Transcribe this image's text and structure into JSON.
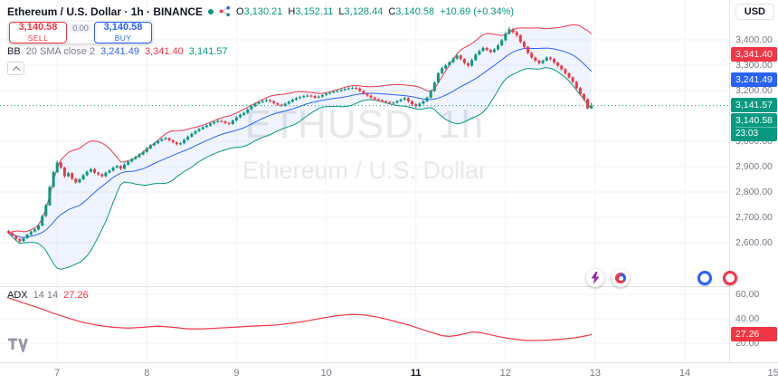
{
  "header": {
    "title": "Ethereum / U.S. Dollar · 1h · BINANCE",
    "ohlc": {
      "o_label": "O",
      "o": "3,130.21",
      "h_label": "H",
      "h": "3,152.11",
      "l_label": "L",
      "l": "3,128.44",
      "c_label": "C",
      "c": "3,140.58",
      "change": "+10.69 (+0.34%)"
    }
  },
  "trade_panel": {
    "sell_price": "3,140.58",
    "sell_label": "SELL",
    "spread": "0.00",
    "buy_price": "3,140.58",
    "buy_label": "BUY"
  },
  "indicators_row": {
    "bb": {
      "name": "BB",
      "params": "20 SMA close 2",
      "values": [
        {
          "text": "3,241.49",
          "color": "#2962ff"
        },
        {
          "text": "3,341.40",
          "color": "#f23645"
        },
        {
          "text": "3,141.57",
          "color": "#089981"
        }
      ]
    },
    "adx": {
      "name": "ADX",
      "params": "14 14",
      "value": "27.26"
    }
  },
  "watermark": {
    "line1": "ETHUSD, 1h",
    "line2": "Ethereum / U.S. Dollar"
  },
  "toolbar": {
    "currency_label": "USD"
  },
  "price_scale": {
    "labels": [
      {
        "text": "3,400.00",
        "price": 3400
      },
      {
        "text": "3,300.00",
        "price": 3300
      },
      {
        "text": "3,200.00",
        "price": 3200
      },
      {
        "text": "3,000.00",
        "price": 3000
      },
      {
        "text": "2,900.00",
        "price": 2900
      },
      {
        "text": "2,800.00",
        "price": 2800
      },
      {
        "text": "2,700.00",
        "price": 2700
      },
      {
        "text": "2,600.00",
        "price": 2600
      }
    ],
    "badges": [
      {
        "text": "3,341.40",
        "price": 3341.4,
        "color": "#f23645",
        "name": "bb-upper-badge"
      },
      {
        "text": "3,241.49",
        "price": 3241.49,
        "color": "#2962ff",
        "name": "bb-basis-badge"
      },
      {
        "text": "3,141.57",
        "price": 3141.57,
        "color": "#089981",
        "name": "bb-lower-badge"
      }
    ],
    "current_badge": {
      "text": "3,140.58",
      "countdown": "23:03",
      "price": 3140.58,
      "color": "#089981"
    }
  },
  "adx_scale": {
    "labels": [
      {
        "text": "60.00",
        "value": 60
      },
      {
        "text": "40.00",
        "value": 40
      },
      {
        "text": "20.00",
        "value": 20
      }
    ],
    "badge": {
      "text": "27.26",
      "value": 27.26,
      "color": "#f23645"
    }
  },
  "time_axis": [
    {
      "label": "7",
      "i": 13
    },
    {
      "label": "8",
      "i": 37
    },
    {
      "label": "9",
      "i": 61
    },
    {
      "label": "10",
      "i": 85
    },
    {
      "label": "11",
      "i": 109,
      "bold": true
    },
    {
      "label": "12",
      "i": 133
    },
    {
      "label": "13",
      "i": 157
    },
    {
      "label": "14",
      "i": 181
    },
    {
      "label": "15:",
      "i": 205
    }
  ],
  "colors": {
    "up": "#089981",
    "down": "#f23645",
    "bb_basis": "#2962ff",
    "bb_upper": "#f23645",
    "bb_lower": "#089981",
    "bb_fill": "rgba(41,98,255,0.07)",
    "adx_line": "#f23645",
    "grid": "#f0f3fa",
    "axis_text": "#787b86",
    "text": "#131722"
  },
  "chart_data": {
    "type": "candlestick",
    "symbol": "ETHUSD",
    "exchange": "BINANCE",
    "interval": "1h",
    "title": "Ethereum / U.S. Dollar",
    "current_price": 3140.58,
    "price_axis": {
      "tick_step": 100,
      "visible_ticks": [
        2600,
        2700,
        2800,
        2900,
        3000,
        3200,
        3300,
        3400
      ],
      "y_range_approx": [
        2430,
        3557
      ]
    },
    "indicators": {
      "bollinger": {
        "period": 20,
        "source": "SMA close",
        "stdev": 2,
        "basis": 3241.49,
        "upper": 3341.4,
        "lower": 3141.57
      },
      "adx": {
        "smoothing": 14,
        "di_length": 14,
        "value": 27.26,
        "scale_ticks": [
          20,
          40,
          60
        ],
        "points": [
          [
            0,
            57
          ],
          [
            4,
            53
          ],
          [
            8,
            49
          ],
          [
            12,
            44.5
          ],
          [
            16,
            40.5
          ],
          [
            20,
            37
          ],
          [
            24,
            34.5
          ],
          [
            28,
            33
          ],
          [
            32,
            32.4
          ],
          [
            36,
            33
          ],
          [
            40,
            34
          ],
          [
            44,
            33
          ],
          [
            48,
            31.8
          ],
          [
            52,
            31.8
          ],
          [
            56,
            32.4
          ],
          [
            60,
            33
          ],
          [
            64,
            33.8
          ],
          [
            68,
            34.4
          ],
          [
            72,
            35
          ],
          [
            76,
            36.6
          ],
          [
            80,
            38.4
          ],
          [
            84,
            40.6
          ],
          [
            88,
            42.6
          ],
          [
            92,
            43.6
          ],
          [
            95,
            43.2
          ],
          [
            98,
            41.8
          ],
          [
            101,
            39.8
          ],
          [
            104,
            37.4
          ],
          [
            107,
            35
          ],
          [
            110,
            32
          ],
          [
            113,
            29
          ],
          [
            116,
            26.2
          ],
          [
            118,
            25.6
          ],
          [
            120,
            26.4
          ],
          [
            122,
            27.8
          ],
          [
            124,
            29.2
          ],
          [
            126,
            28.8
          ],
          [
            128,
            27.6
          ],
          [
            130,
            26.2
          ],
          [
            132,
            25
          ],
          [
            134,
            24
          ],
          [
            136,
            23
          ],
          [
            139,
            22.2
          ],
          [
            142,
            22.4
          ],
          [
            145,
            22.7
          ],
          [
            148,
            23.3
          ],
          [
            151,
            24.2
          ],
          [
            153,
            25.2
          ],
          [
            155,
            26.4
          ],
          [
            156,
            27.26
          ]
        ]
      }
    },
    "candles": [
      [
        2646,
        2650,
        2634,
        2638
      ],
      [
        2638,
        2641,
        2624,
        2628
      ],
      [
        2628,
        2631,
        2610,
        2615
      ],
      [
        2615,
        2618,
        2598,
        2606
      ],
      [
        2606,
        2622,
        2602,
        2618
      ],
      [
        2618,
        2636,
        2614,
        2632
      ],
      [
        2632,
        2648,
        2628,
        2644
      ],
      [
        2644,
        2657,
        2640,
        2652
      ],
      [
        2652,
        2673,
        2648,
        2668
      ],
      [
        2668,
        2710,
        2664,
        2705
      ],
      [
        2705,
        2754,
        2701,
        2748
      ],
      [
        2748,
        2826,
        2744,
        2820
      ],
      [
        2820,
        2884,
        2816,
        2878
      ],
      [
        2878,
        2924,
        2874,
        2916
      ],
      [
        2916,
        2920,
        2890,
        2896
      ],
      [
        2896,
        2900,
        2856,
        2862
      ],
      [
        2862,
        2879,
        2858,
        2874
      ],
      [
        2874,
        2878,
        2846,
        2852
      ],
      [
        2852,
        2856,
        2832,
        2838
      ],
      [
        2838,
        2855,
        2834,
        2850
      ],
      [
        2850,
        2871,
        2846,
        2866
      ],
      [
        2866,
        2885,
        2862,
        2880
      ],
      [
        2880,
        2896,
        2876,
        2890
      ],
      [
        2890,
        2894,
        2871,
        2876
      ],
      [
        2876,
        2880,
        2864,
        2870
      ],
      [
        2870,
        2874,
        2856,
        2862
      ],
      [
        2862,
        2881,
        2858,
        2876
      ],
      [
        2876,
        2889,
        2872,
        2884
      ],
      [
        2884,
        2901,
        2880,
        2896
      ],
      [
        2896,
        2907,
        2892,
        2902
      ],
      [
        2902,
        2906,
        2886,
        2892
      ],
      [
        2892,
        2913,
        2888,
        2908
      ],
      [
        2908,
        2925,
        2904,
        2920
      ],
      [
        2920,
        2935,
        2916,
        2930
      ],
      [
        2930,
        2943,
        2926,
        2938
      ],
      [
        2938,
        2953,
        2934,
        2948
      ],
      [
        2948,
        2963,
        2944,
        2958
      ],
      [
        2958,
        2977,
        2954,
        2972
      ],
      [
        2972,
        2989,
        2968,
        2984
      ],
      [
        2984,
        2997,
        2980,
        2992
      ],
      [
        2992,
        3007,
        2988,
        3002
      ],
      [
        3002,
        3013,
        2998,
        3008
      ],
      [
        3008,
        3018,
        3004,
        3012
      ],
      [
        3012,
        3016,
        2999,
        3004
      ],
      [
        3004,
        3008,
        2991,
        2996
      ],
      [
        2996,
        3000,
        2983,
        2988
      ],
      [
        2988,
        2997,
        2984,
        2992
      ],
      [
        2992,
        3011,
        2988,
        3006
      ],
      [
        3006,
        3023,
        3002,
        3018
      ],
      [
        3018,
        3035,
        3014,
        3030
      ],
      [
        3030,
        3045,
        3026,
        3040
      ],
      [
        3040,
        3053,
        3036,
        3048
      ],
      [
        3048,
        3061,
        3044,
        3056
      ],
      [
        3056,
        3067,
        3052,
        3062
      ],
      [
        3062,
        3075,
        3058,
        3070
      ],
      [
        3070,
        3081,
        3066,
        3076
      ],
      [
        3076,
        3086,
        3072,
        3080
      ],
      [
        3080,
        3085,
        3073,
        3078
      ],
      [
        3078,
        3082,
        3067,
        3072
      ],
      [
        3072,
        3076,
        3062,
        3068
      ],
      [
        3068,
        3087,
        3064,
        3082
      ],
      [
        3082,
        3099,
        3078,
        3094
      ],
      [
        3094,
        3109,
        3090,
        3104
      ],
      [
        3104,
        3117,
        3100,
        3112
      ],
      [
        3112,
        3131,
        3108,
        3126
      ],
      [
        3126,
        3143,
        3122,
        3138
      ],
      [
        3138,
        3153,
        3134,
        3148
      ],
      [
        3148,
        3159,
        3144,
        3154
      ],
      [
        3154,
        3164,
        3150,
        3158
      ],
      [
        3158,
        3168,
        3154,
        3162
      ],
      [
        3162,
        3166,
        3152,
        3158
      ],
      [
        3158,
        3162,
        3145,
        3150
      ],
      [
        3150,
        3154,
        3139,
        3144
      ],
      [
        3144,
        3148,
        3134,
        3140
      ],
      [
        3140,
        3153,
        3136,
        3148
      ],
      [
        3148,
        3161,
        3144,
        3156
      ],
      [
        3156,
        3169,
        3152,
        3164
      ],
      [
        3164,
        3175,
        3160,
        3170
      ],
      [
        3170,
        3179,
        3166,
        3174
      ],
      [
        3174,
        3183,
        3170,
        3178
      ],
      [
        3178,
        3186,
        3174,
        3180
      ],
      [
        3180,
        3185,
        3173,
        3178
      ],
      [
        3178,
        3182,
        3167,
        3172
      ],
      [
        3172,
        3181,
        3168,
        3176
      ],
      [
        3176,
        3187,
        3172,
        3182
      ],
      [
        3182,
        3193,
        3178,
        3188
      ],
      [
        3188,
        3197,
        3184,
        3192
      ],
      [
        3192,
        3201,
        3188,
        3196
      ],
      [
        3196,
        3204,
        3192,
        3198
      ],
      [
        3198,
        3208,
        3194,
        3202
      ],
      [
        3202,
        3211,
        3198,
        3206
      ],
      [
        3206,
        3214,
        3202,
        3208
      ],
      [
        3208,
        3216,
        3204,
        3210
      ],
      [
        3210,
        3215,
        3203,
        3208
      ],
      [
        3208,
        3212,
        3193,
        3198
      ],
      [
        3198,
        3202,
        3183,
        3188
      ],
      [
        3188,
        3192,
        3175,
        3180
      ],
      [
        3180,
        3184,
        3167,
        3172
      ],
      [
        3172,
        3176,
        3161,
        3166
      ],
      [
        3166,
        3170,
        3157,
        3162
      ],
      [
        3162,
        3166,
        3153,
        3158
      ],
      [
        3158,
        3162,
        3149,
        3154
      ],
      [
        3154,
        3158,
        3144,
        3150
      ],
      [
        3150,
        3157,
        3146,
        3152
      ],
      [
        3152,
        3163,
        3148,
        3158
      ],
      [
        3158,
        3169,
        3154,
        3164
      ],
      [
        3164,
        3175,
        3160,
        3170
      ],
      [
        3170,
        3174,
        3152,
        3158
      ],
      [
        3158,
        3162,
        3140,
        3146
      ],
      [
        3146,
        3150,
        3131,
        3138
      ],
      [
        3138,
        3153,
        3134,
        3148
      ],
      [
        3148,
        3163,
        3144,
        3158
      ],
      [
        3158,
        3177,
        3154,
        3172
      ],
      [
        3172,
        3204,
        3168,
        3198
      ],
      [
        3198,
        3238,
        3194,
        3232
      ],
      [
        3232,
        3274,
        3228,
        3268
      ],
      [
        3268,
        3294,
        3264,
        3288
      ],
      [
        3288,
        3306,
        3283,
        3300
      ],
      [
        3300,
        3318,
        3295,
        3312
      ],
      [
        3312,
        3332,
        3307,
        3326
      ],
      [
        3326,
        3345,
        3321,
        3338
      ],
      [
        3338,
        3342,
        3318,
        3324
      ],
      [
        3324,
        3328,
        3302,
        3308
      ],
      [
        3308,
        3312,
        3292,
        3298
      ],
      [
        3298,
        3326,
        3294,
        3320
      ],
      [
        3320,
        3348,
        3316,
        3342
      ],
      [
        3342,
        3362,
        3338,
        3356
      ],
      [
        3356,
        3374,
        3352,
        3368
      ],
      [
        3368,
        3372,
        3354,
        3360
      ],
      [
        3360,
        3364,
        3346,
        3352
      ],
      [
        3352,
        3368,
        3348,
        3362
      ],
      [
        3362,
        3384,
        3358,
        3378
      ],
      [
        3378,
        3404,
        3374,
        3398
      ],
      [
        3398,
        3431,
        3394,
        3424
      ],
      [
        3424,
        3451,
        3420,
        3442
      ],
      [
        3442,
        3448,
        3424,
        3430
      ],
      [
        3430,
        3436,
        3410,
        3418
      ],
      [
        3418,
        3422,
        3386,
        3392
      ],
      [
        3392,
        3396,
        3366,
        3372
      ],
      [
        3372,
        3376,
        3342,
        3348
      ],
      [
        3348,
        3352,
        3324,
        3330
      ],
      [
        3330,
        3334,
        3312,
        3318
      ],
      [
        3318,
        3322,
        3302,
        3308
      ],
      [
        3308,
        3323,
        3304,
        3318
      ],
      [
        3318,
        3335,
        3314,
        3330
      ],
      [
        3330,
        3334,
        3318,
        3324
      ],
      [
        3324,
        3328,
        3304,
        3310
      ],
      [
        3310,
        3314,
        3292,
        3298
      ],
      [
        3298,
        3302,
        3278,
        3284
      ],
      [
        3284,
        3288,
        3262,
        3268
      ],
      [
        3268,
        3272,
        3246,
        3252
      ],
      [
        3252,
        3256,
        3228,
        3234
      ],
      [
        3234,
        3238,
        3204,
        3210
      ],
      [
        3210,
        3214,
        3180,
        3186
      ],
      [
        3186,
        3190,
        3160,
        3166
      ],
      [
        3166,
        3170,
        3126,
        3130
      ],
      [
        3130,
        3152,
        3128,
        3141
      ]
    ]
  },
  "icons": {
    "market_status_dot": "green-dot",
    "share_icon": "share-network",
    "boost_icon": "lightning-bolt",
    "gauge_icon": "red-blue-donut",
    "marker_icons": [
      "blue-ring",
      "red-ring"
    ],
    "logo": "tradingview-tv-monogram",
    "collapse_icon": "chevron-up"
  }
}
